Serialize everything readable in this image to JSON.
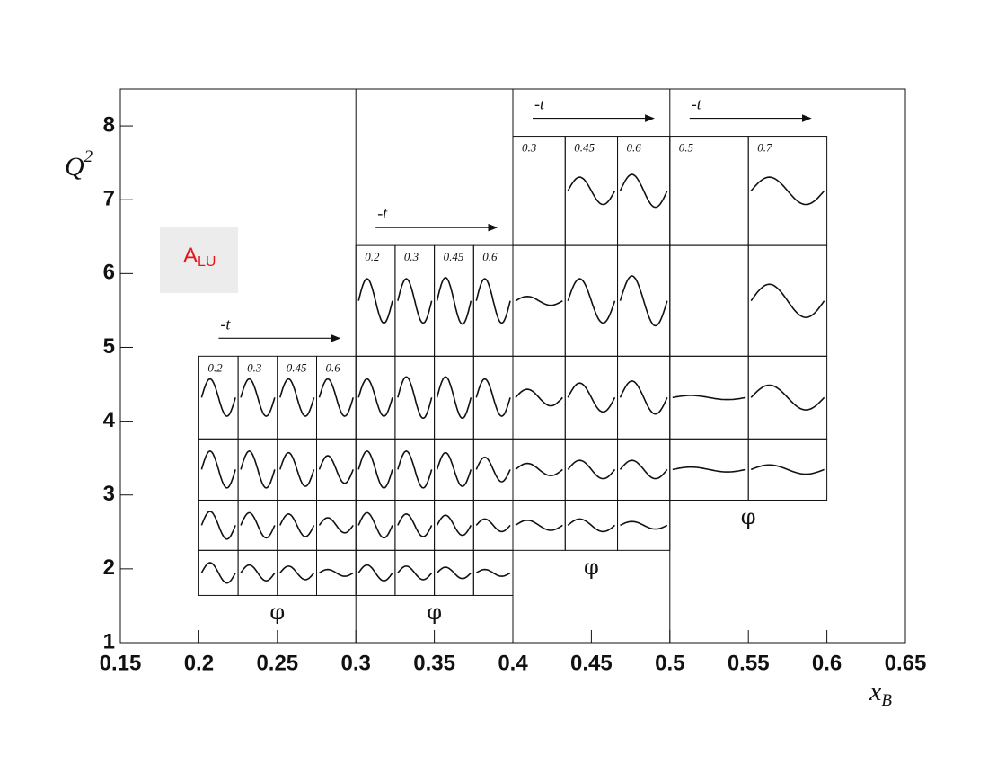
{
  "chart_data": {
    "type": "binned-panels",
    "x_label": {
      "base": "x",
      "sub": "B"
    },
    "y_label": {
      "base": "Q",
      "sup": "2"
    },
    "legend": {
      "text": "A",
      "sub": "LU",
      "color": "#e8141c",
      "background": "#ececec"
    },
    "xlim": [
      0.15,
      0.65
    ],
    "ylim": [
      1,
      8.5
    ],
    "xticks": [
      0.15,
      0.2,
      0.25,
      0.3,
      0.35,
      0.4,
      0.45,
      0.5,
      0.55,
      0.6,
      0.65
    ],
    "yticks": [
      1,
      2,
      3,
      4,
      5,
      6,
      7,
      8
    ],
    "blocks": [
      {
        "xrange": [
          0.2,
          0.3
        ],
        "t_label": "-t",
        "phi_label": "φ",
        "t_bins": [
          0.2,
          0.3,
          0.45,
          0.6
        ],
        "q2_edges": [
          1.64,
          2.25,
          2.93,
          3.76,
          4.88
        ],
        "amplitudes": [
          [
            0.45,
            0.35,
            0.3,
            0.15
          ],
          [
            0.55,
            0.5,
            0.45,
            0.3
          ],
          [
            0.6,
            0.6,
            0.55,
            0.45
          ],
          [
            0.45,
            0.45,
            0.45,
            0.45
          ]
        ]
      },
      {
        "xrange": [
          0.3,
          0.4
        ],
        "t_label": "-t",
        "phi_label": "φ",
        "t_bins": [
          0.2,
          0.3,
          0.45,
          0.6
        ],
        "q2_edges": [
          1.64,
          2.25,
          2.93,
          3.76,
          4.88,
          6.38
        ],
        "amplitudes": [
          [
            0.35,
            0.3,
            0.25,
            0.15
          ],
          [
            0.5,
            0.45,
            0.4,
            0.25
          ],
          [
            0.6,
            0.6,
            0.55,
            0.4
          ],
          [
            0.45,
            0.5,
            0.5,
            0.45
          ],
          [
            0.4,
            0.4,
            0.42,
            0.4
          ]
        ]
      },
      {
        "xrange": [
          0.4,
          0.5
        ],
        "t_label": "-t",
        "phi_label": "φ",
        "t_bins": [
          0.3,
          0.45,
          0.6
        ],
        "q2_edges": [
          2.25,
          2.93,
          3.76,
          4.88,
          6.38,
          7.86
        ],
        "amplitudes": [
          [
            0.2,
            0.25,
            0.15
          ],
          [
            0.2,
            0.3,
            0.3
          ],
          [
            0.2,
            0.35,
            0.4
          ],
          [
            0.08,
            0.4,
            0.45
          ],
          [
            null,
            0.25,
            0.3
          ]
        ]
      },
      {
        "xrange": [
          0.5,
          0.6
        ],
        "t_label": "-t",
        "phi_label": "φ",
        "t_bins": [
          0.5,
          0.7
        ],
        "q2_edges": [
          2.93,
          3.76,
          4.88,
          6.38,
          7.86
        ],
        "amplitudes": [
          [
            0.08,
            0.15
          ],
          [
            0.05,
            0.3
          ],
          [
            null,
            0.3
          ],
          [
            null,
            0.25
          ]
        ]
      }
    ]
  }
}
